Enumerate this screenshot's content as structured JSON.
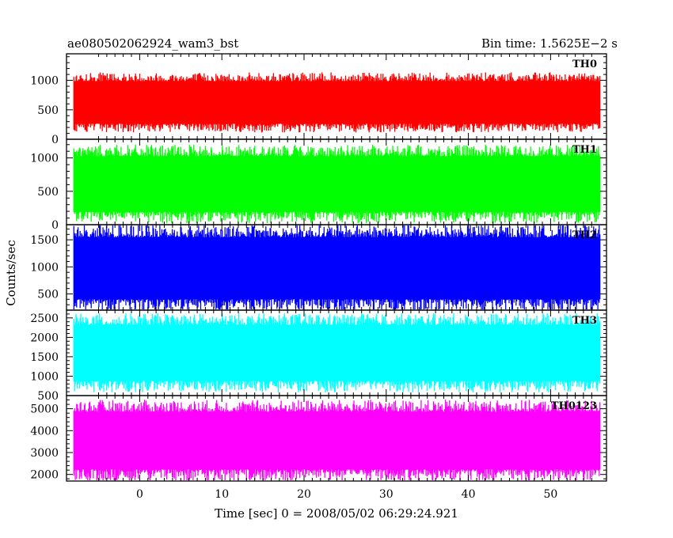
{
  "chart_data": {
    "type": "line",
    "title": "ae080502062924_wam3_bst",
    "bin_time_label": "Bin time: 1.5625E−2 s",
    "xlabel": "Time [sec] 0 = 2008/05/02 06:29:24.921",
    "ylabel": "Counts/sec",
    "xlim": [
      -8.9,
      56.8
    ],
    "data_x_range": [
      -8.0,
      56.0
    ],
    "x_ticks": [
      "0",
      "10",
      "20",
      "30",
      "40",
      "50"
    ],
    "grid": false,
    "panels": [
      {
        "name": "TH0",
        "color": "#ff0000",
        "ylim": [
          0,
          1450
        ],
        "yticks": [
          "0",
          "500",
          "1000"
        ],
        "typical_low": 200,
        "typical_high": 1050
      },
      {
        "name": "TH1",
        "color": "#00ff00",
        "ylim": [
          0,
          1280
        ],
        "yticks": [
          "0",
          "500",
          "1000"
        ],
        "typical_low": 120,
        "typical_high": 1100
      },
      {
        "name": "TH2",
        "color": "#0000ff",
        "ylim": [
          200,
          1780
        ],
        "yticks": [
          "500",
          "1000",
          "1500"
        ],
        "typical_low": 300,
        "typical_high": 1650
      },
      {
        "name": "TH3",
        "color": "#00ffff",
        "ylim": [
          500,
          2700
        ],
        "yticks": [
          "500",
          "1000",
          "1500",
          "2000",
          "2500"
        ],
        "typical_low": 750,
        "typical_high": 2450
      },
      {
        "name": "TH0123",
        "color": "#ff00ff",
        "ylim": [
          1700,
          5600
        ],
        "yticks": [
          "2000",
          "3000",
          "4000",
          "5000"
        ],
        "typical_low": 2000,
        "typical_high": 5100
      }
    ]
  }
}
